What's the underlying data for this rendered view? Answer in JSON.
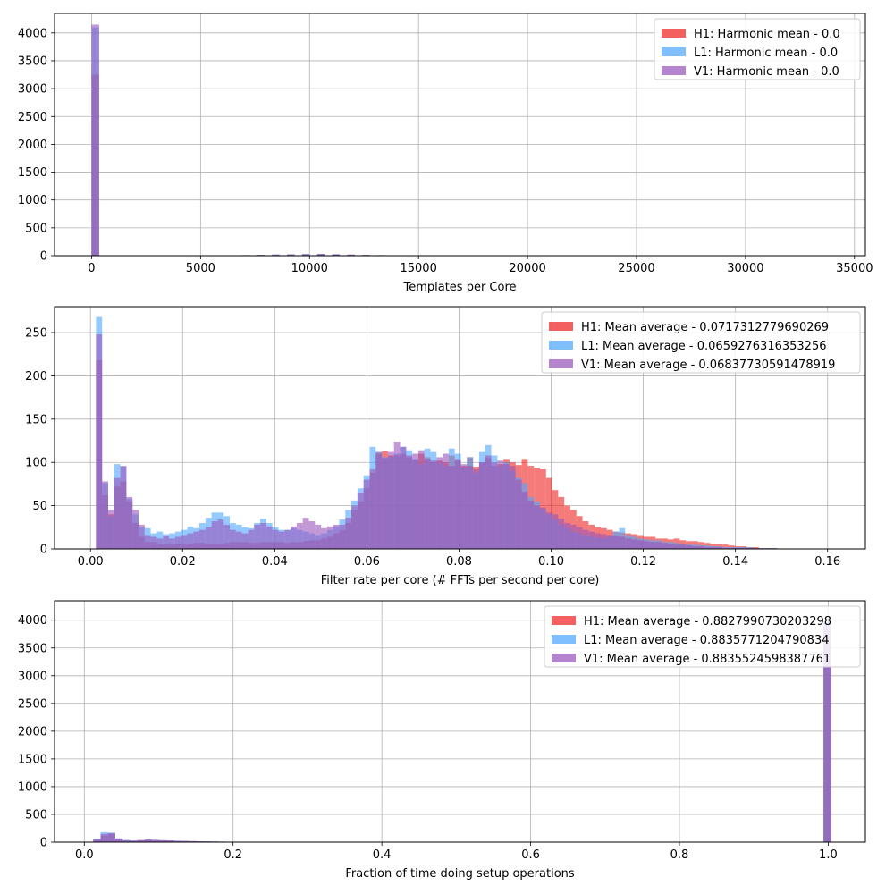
{
  "chart_data": [
    {
      "type": "bar",
      "subtype": "histogram",
      "xlabel": "Templates per Core",
      "ylabel": "",
      "xlim": [
        -1700,
        35500
      ],
      "ylim": [
        0,
        4350
      ],
      "xticks": [
        0,
        5000,
        10000,
        15000,
        20000,
        25000,
        30000,
        35000
      ],
      "yticks": [
        0,
        500,
        1000,
        1500,
        2000,
        2500,
        3000,
        3500,
        4000
      ],
      "grid": true,
      "legend_placement": "top-right",
      "bin_width": 345,
      "series": [
        {
          "name": "H1: Harmonic mean  - 0.0",
          "color": "#ee2222",
          "bars": [
            [
              0,
              3250
            ],
            [
              6900,
              10
            ],
            [
              7590,
              12
            ],
            [
              8280,
              18
            ],
            [
              8970,
              22
            ],
            [
              9660,
              25
            ],
            [
              10350,
              28
            ],
            [
              11040,
              25
            ],
            [
              11730,
              20
            ],
            [
              12420,
              14
            ],
            [
              13110,
              10
            ],
            [
              13800,
              6
            ]
          ]
        },
        {
          "name": "L1: Harmonic mean  - 0.0",
          "color": "#4da6ff",
          "bars": [
            [
              0,
              4100
            ],
            [
              6900,
              8
            ],
            [
              7590,
              14
            ],
            [
              8280,
              20
            ],
            [
              8970,
              24
            ],
            [
              9660,
              30
            ],
            [
              10350,
              32
            ],
            [
              11040,
              26
            ],
            [
              11730,
              18
            ],
            [
              12420,
              12
            ],
            [
              13110,
              8
            ],
            [
              13800,
              4
            ]
          ]
        },
        {
          "name": "V1: Harmonic mean  - 0.0",
          "color": "#9955bb",
          "bars": [
            [
              0,
              4150
            ],
            [
              6900,
              9
            ],
            [
              7590,
              13
            ],
            [
              8280,
              19
            ],
            [
              8970,
              23
            ],
            [
              9660,
              27
            ],
            [
              10350,
              30
            ],
            [
              11040,
              24
            ],
            [
              11730,
              18
            ],
            [
              12420,
              13
            ],
            [
              13110,
              9
            ],
            [
              13800,
              5
            ]
          ]
        }
      ]
    },
    {
      "type": "bar",
      "subtype": "histogram",
      "xlabel": "Filter rate per core (# FFTs per second per core)",
      "ylabel": "",
      "xlim": [
        -0.0078,
        0.1682
      ],
      "ylim": [
        0,
        280
      ],
      "xticks": [
        0.0,
        0.02,
        0.04,
        0.06,
        0.08,
        0.1,
        0.12,
        0.14,
        0.16
      ],
      "yticks": [
        0,
        50,
        100,
        150,
        200,
        250
      ],
      "grid": true,
      "legend_placement": "top-right",
      "bin_start": 0.0012,
      "bin_width": 0.00132,
      "series": [
        {
          "name": "H1: Mean average - 0.0717312779690269",
          "color": "#ee2222",
          "values": [
            218,
            62,
            40,
            72,
            78,
            55,
            30,
            14,
            8,
            8,
            6,
            5,
            5,
            6,
            5,
            6,
            7,
            7,
            6,
            6,
            6,
            7,
            8,
            8,
            8,
            7,
            7,
            8,
            8,
            8,
            8,
            7,
            8,
            8,
            9,
            10,
            10,
            12,
            14,
            18,
            22,
            30,
            45,
            55,
            70,
            88,
            112,
            113,
            108,
            108,
            110,
            106,
            103,
            110,
            106,
            100,
            102,
            100,
            108,
            102,
            96,
            106,
            95,
            100,
            105,
            96,
            98,
            104,
            100,
            97,
            104,
            96,
            94,
            92,
            82,
            68,
            60,
            50,
            45,
            38,
            32,
            28,
            25,
            24,
            22,
            20,
            19,
            18,
            17,
            16,
            14,
            14,
            12,
            12,
            11,
            12,
            10,
            9,
            9,
            8,
            7,
            6,
            6,
            5,
            4,
            3,
            3,
            2,
            2,
            1,
            1,
            1
          ]
        },
        {
          "name": "L1: Mean average - 0.0659276316353256",
          "color": "#4da6ff",
          "values": [
            268,
            76,
            38,
            98,
            95,
            58,
            40,
            25,
            24,
            18,
            20,
            17,
            18,
            20,
            22,
            26,
            24,
            30,
            36,
            42,
            42,
            38,
            30,
            28,
            25,
            24,
            30,
            35,
            30,
            25,
            22,
            22,
            24,
            22,
            20,
            18,
            16,
            18,
            22,
            26,
            34,
            45,
            56,
            70,
            85,
            118,
            112,
            106,
            106,
            110,
            118,
            114,
            104,
            98,
            116,
            112,
            100,
            96,
            116,
            110,
            94,
            106,
            88,
            112,
            120,
            108,
            96,
            100,
            90,
            82,
            76,
            60,
            55,
            46,
            40,
            34,
            28,
            24,
            20,
            18,
            16,
            14,
            13,
            12,
            14,
            20,
            24,
            16,
            14,
            12,
            11,
            10,
            10,
            8,
            8,
            7,
            6,
            5,
            5,
            4,
            4,
            3,
            3,
            2,
            2,
            2,
            2,
            2,
            1,
            1,
            1,
            1
          ]
        },
        {
          "name": "V1: Mean average - 0.06837730591478919",
          "color": "#9955bb",
          "values": [
            248,
            78,
            45,
            82,
            96,
            60,
            45,
            28,
            16,
            14,
            12,
            15,
            12,
            14,
            16,
            18,
            20,
            22,
            25,
            32,
            34,
            28,
            22,
            20,
            18,
            22,
            28,
            30,
            26,
            22,
            20,
            22,
            26,
            30,
            36,
            32,
            28,
            24,
            26,
            28,
            28,
            36,
            50,
            65,
            80,
            92,
            110,
            105,
            112,
            124,
            118,
            108,
            110,
            114,
            104,
            102,
            106,
            110,
            96,
            104,
            98,
            96,
            92,
            100,
            108,
            100,
            102,
            98,
            96,
            80,
            66,
            56,
            50,
            48,
            42,
            40,
            35,
            30,
            28,
            25,
            22,
            20,
            18,
            17,
            16,
            15,
            14,
            12,
            11,
            10,
            9,
            8,
            8,
            7,
            6,
            5,
            5,
            4,
            3,
            3,
            2,
            2,
            2,
            1,
            1,
            1,
            1,
            1,
            1,
            0,
            0,
            0
          ]
        }
      ]
    },
    {
      "type": "bar",
      "subtype": "histogram",
      "xlabel": "Fraction of time doing setup operations",
      "ylabel": "",
      "xlim": [
        -0.04,
        1.05
      ],
      "ylim": [
        0,
        4350
      ],
      "xticks": [
        0.0,
        0.2,
        0.4,
        0.6,
        0.8,
        1.0
      ],
      "yticks": [
        0,
        500,
        1000,
        1500,
        2000,
        2500,
        3000,
        3500,
        4000
      ],
      "grid": true,
      "legend_placement": "top-right",
      "bin_start": 0.012,
      "bin_width": 0.00988,
      "series": [
        {
          "name": "H1: Mean average - 0.8827990730203298",
          "color": "#ee2222",
          "values": [
            40,
            120,
            150,
            60,
            30,
            25,
            35,
            40,
            35,
            30,
            28,
            22,
            20,
            18,
            14,
            12,
            10,
            8,
            6,
            6,
            5,
            4,
            4,
            3,
            2,
            2,
            2,
            1,
            1,
            1
          ]
        },
        {
          "name": "L1: Mean average - 0.8835771204790834",
          "color": "#4da6ff",
          "values": [
            60,
            180,
            170,
            70,
            40,
            30,
            32,
            45,
            40,
            34,
            30,
            25,
            22,
            18,
            16,
            14,
            12,
            10,
            8,
            7,
            6,
            5,
            4,
            4,
            3,
            3,
            3,
            2,
            2,
            1
          ]
        },
        {
          "name": "V1: Mean average - 0.8835524598387761",
          "color": "#9955bb",
          "values": [
            55,
            150,
            165,
            65,
            35,
            28,
            38,
            48,
            42,
            36,
            30,
            24,
            20,
            18,
            15,
            13,
            11,
            9,
            7,
            6,
            5,
            4,
            4,
            3,
            2,
            2,
            2,
            1,
            1,
            1
          ]
        }
      ],
      "spike": {
        "x": 0.9937,
        "width": 0.0099,
        "values": [
          3950,
          4000,
          3900
        ]
      }
    }
  ]
}
